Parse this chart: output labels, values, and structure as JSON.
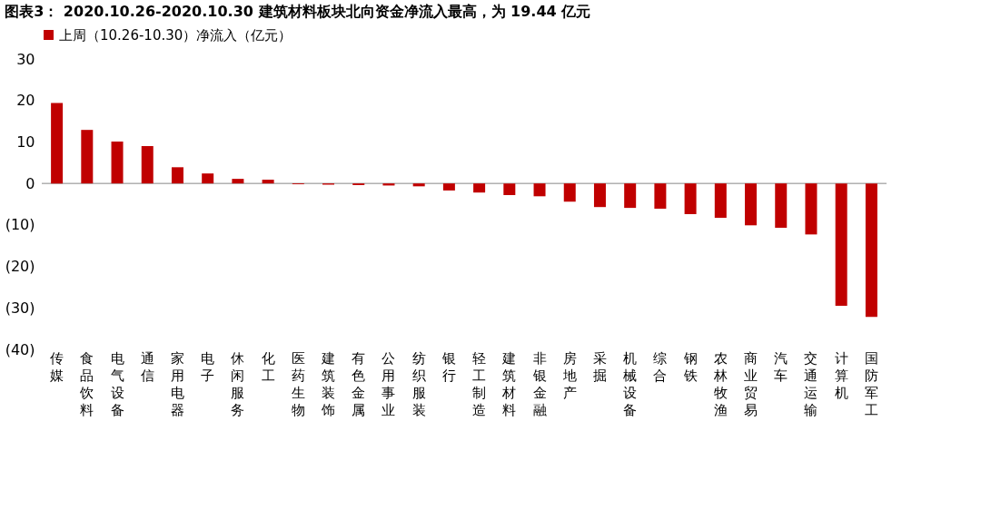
{
  "chart_data": {
    "type": "bar",
    "title": "图表3：  2020.10.26-2020.10.30 建筑材料板块北向资金净流入最高，为 19.44 亿元",
    "categories": [
      "传媒",
      "食品饮料",
      "电气设备",
      "通信",
      "家用电器",
      "电子",
      "休闲服务",
      "化工",
      "医药生物",
      "建筑装饰",
      "有色金属",
      "公用事业",
      "纺织服装",
      "银行",
      "轻工制造",
      "建筑材料",
      "非银金融",
      "房地产",
      "采掘",
      "机械设备",
      "综合",
      "钢铁",
      "农林牧渔",
      "商业贸易",
      "汽车",
      "交通运输",
      "计算机",
      "国防军工"
    ],
    "series": [
      {
        "name": "上周（10.26-10.30）净流入（亿元）",
        "color": "#c00000",
        "values": [
          19.4,
          12.9,
          10.1,
          9.0,
          3.9,
          2.4,
          1.1,
          0.9,
          -0.2,
          -0.3,
          -0.4,
          -0.5,
          -0.7,
          -1.7,
          -2.2,
          -2.8,
          -3.1,
          -4.4,
          -5.7,
          -5.9,
          -6.1,
          -7.4,
          -8.3,
          -10.1,
          -10.7,
          -12.3,
          -29.5,
          -32.2
        ]
      }
    ],
    "ylim": [
      -40,
      30
    ],
    "yticks": [
      {
        "value": -40,
        "label": "(40)"
      },
      {
        "value": -30,
        "label": "(30)"
      },
      {
        "value": -20,
        "label": "(20)"
      },
      {
        "value": -10,
        "label": "(10)"
      },
      0,
      10,
      20,
      30
    ],
    "ref_lines": [
      {
        "axis": "y",
        "value": 0,
        "color": "#888888"
      }
    ],
    "grid": false,
    "legend": "top"
  }
}
